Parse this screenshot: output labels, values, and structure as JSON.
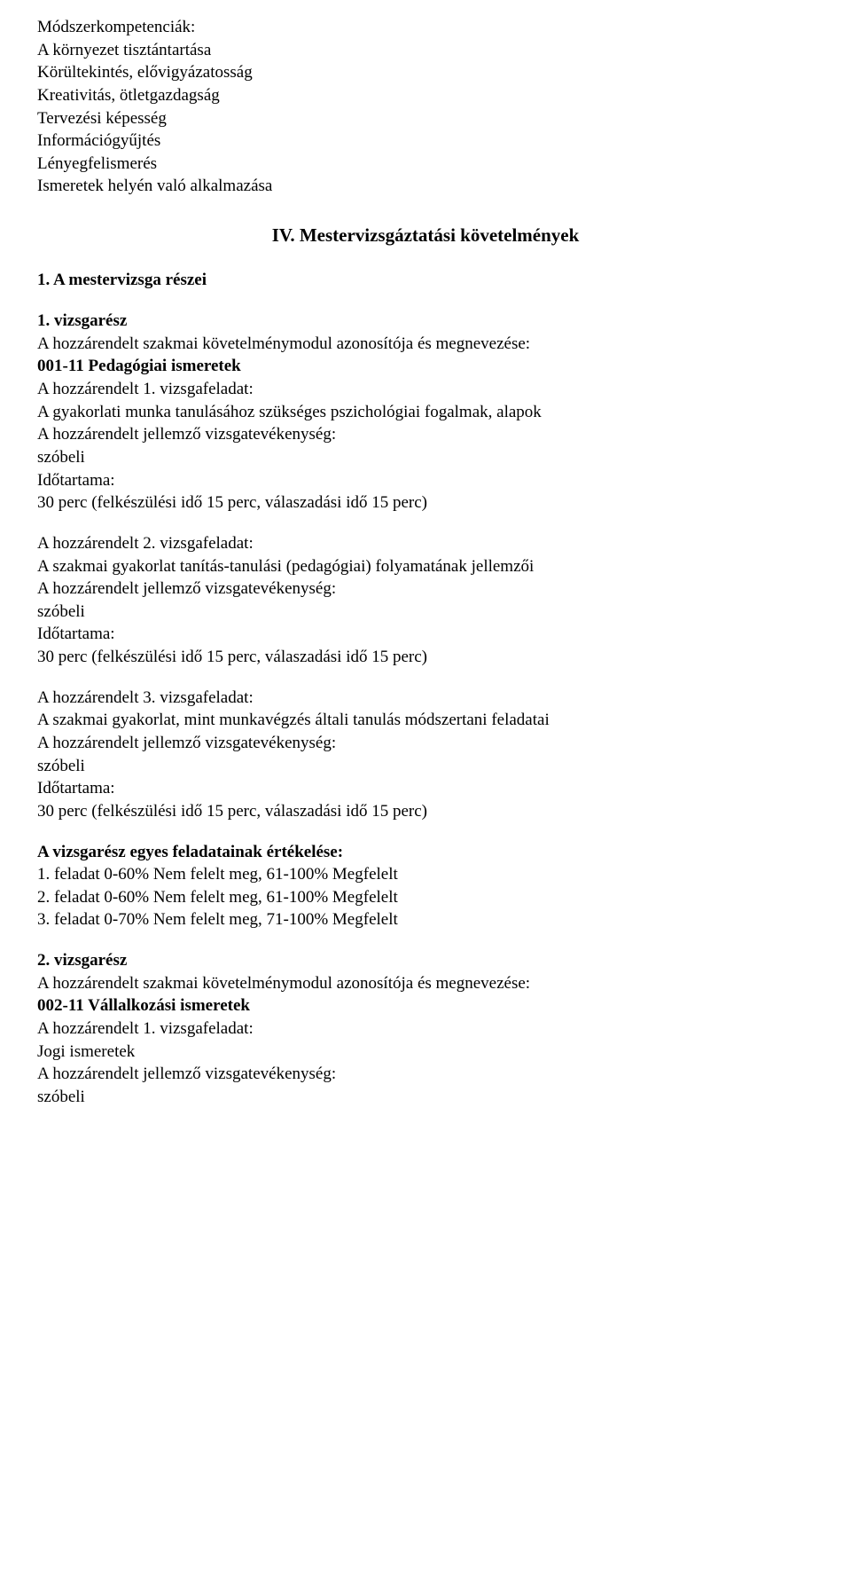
{
  "competencies": {
    "heading": "Módszerkompetenciák:",
    "items": [
      "A környezet tisztántartása",
      "Körültekintés, elővigyázatosság",
      "Kreativitás, ötletgazdagság",
      "Tervezési képesség",
      "Információgyűjtés",
      "Lényegfelismerés",
      "Ismeretek helyén való alkalmazása"
    ]
  },
  "section_title": "IV. Mestervizsgáztatási követelmények",
  "parts_heading": "1. A mestervizsga részei",
  "part1": {
    "heading": "1. vizsgarész",
    "module_line": "A hozzárendelt szakmai követelménymodul azonosítója és megnevezése:",
    "module_code": "001-11 Pedagógiai ismeretek",
    "task1": {
      "label": "A hozzárendelt 1. vizsgafeladat:",
      "desc": "A gyakorlati munka tanulásához szükséges pszichológiai fogalmak, alapok",
      "activity_label": "A hozzárendelt jellemző vizsgatevékenység:",
      "activity": "szóbeli",
      "duration_label": "Időtartama:",
      "duration": "30 perc (felkészülési idő 15 perc, válaszadási idő 15 perc)"
    },
    "task2": {
      "label": "A hozzárendelt 2. vizsgafeladat:",
      "desc": "A szakmai gyakorlat tanítás-tanulási (pedagógiai) folyamatának jellemzői",
      "activity_label": "A hozzárendelt jellemző vizsgatevékenység:",
      "activity": "szóbeli",
      "duration_label": "Időtartama:",
      "duration": "30 perc (felkészülési idő 15 perc, válaszadási idő 15 perc)"
    },
    "task3": {
      "label": "A hozzárendelt 3. vizsgafeladat:",
      "desc": "A szakmai gyakorlat, mint munkavégzés általi tanulás módszertani feladatai",
      "activity_label": "A hozzárendelt jellemző vizsgatevékenység:",
      "activity": "szóbeli",
      "duration_label": "Időtartama:",
      "duration": "30 perc (felkészülési idő 15 perc, válaszadási idő 15 perc)"
    },
    "eval": {
      "heading": "A vizsgarész egyes feladatainak értékelése:",
      "lines": [
        "1. feladat 0-60% Nem felelt meg, 61-100% Megfelelt",
        "2. feladat 0-60% Nem felelt meg, 61-100% Megfelelt",
        "3. feladat 0-70% Nem felelt meg, 71-100% Megfelelt"
      ]
    }
  },
  "part2": {
    "heading": "2. vizsgarész",
    "module_line": "A hozzárendelt szakmai követelménymodul azonosítója és megnevezése:",
    "module_code": "002-11 Vállalkozási ismeretek",
    "task1": {
      "label": "A hozzárendelt 1. vizsgafeladat:",
      "desc": "Jogi ismeretek",
      "activity_label": "A hozzárendelt jellemző vizsgatevékenység:",
      "activity": "szóbeli"
    }
  }
}
